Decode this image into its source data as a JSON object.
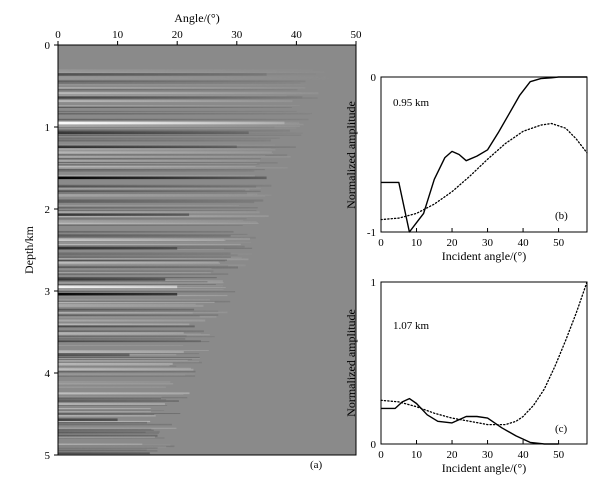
{
  "chart_data": [
    {
      "type": "heatmap",
      "panel_label": "(a)",
      "title": "",
      "xlabel": "Angle/(°)",
      "ylabel": "Depth/km",
      "xlim": [
        0,
        50
      ],
      "ylim": [
        0,
        5
      ],
      "x_ticks": [
        "0",
        "10",
        "20",
        "30",
        "40",
        "50"
      ],
      "y_ticks": [
        "0",
        "1",
        "2",
        "3",
        "4",
        "5"
      ],
      "colormap": "gray seismic amplitude",
      "strong_reflectors": [
        {
          "depth_km": 0.36,
          "strength": -0.35,
          "fade_angle_deg": 35
        },
        {
          "depth_km": 0.95,
          "strength": 0.95,
          "fade_angle_deg": 38
        },
        {
          "depth_km": 1.07,
          "strength": -0.55,
          "fade_angle_deg": 32
        },
        {
          "depth_km": 1.24,
          "strength": -0.45,
          "fade_angle_deg": 30
        },
        {
          "depth_km": 1.62,
          "strength": -0.98,
          "fade_angle_deg": 35
        },
        {
          "depth_km": 2.07,
          "strength": -0.6,
          "fade_angle_deg": 22
        },
        {
          "depth_km": 2.48,
          "strength": -0.55,
          "fade_angle_deg": 20
        },
        {
          "depth_km": 2.86,
          "strength": -0.6,
          "fade_angle_deg": 18
        },
        {
          "depth_km": 2.95,
          "strength": 0.85,
          "fade_angle_deg": 20
        },
        {
          "depth_km": 3.04,
          "strength": -0.95,
          "fade_angle_deg": 20
        },
        {
          "depth_km": 3.78,
          "strength": -0.45,
          "fade_angle_deg": 12
        },
        {
          "depth_km": 4.57,
          "strength": -0.5,
          "fade_angle_deg": 10
        }
      ]
    },
    {
      "type": "line",
      "panel_label": "(b)",
      "annotation": "0.95 km",
      "xlabel": "Incident angle/(°)",
      "ylabel": "Normalized amplitude",
      "xlim": [
        0,
        58
      ],
      "ylim": [
        -1,
        0
      ],
      "x_ticks": [
        "0",
        "10",
        "20",
        "30",
        "40",
        "50"
      ],
      "y_ticks": [
        "0",
        "-1"
      ],
      "series": [
        {
          "name": "solid",
          "style": "solid",
          "x": [
            0,
            3,
            5,
            8,
            10,
            12,
            15,
            18,
            20,
            22,
            24,
            27,
            30,
            33,
            36,
            39,
            42,
            45,
            48,
            50,
            58
          ],
          "y": [
            -0.68,
            -0.68,
            -0.68,
            -1.0,
            -0.94,
            -0.88,
            -0.66,
            -0.52,
            -0.48,
            -0.5,
            -0.54,
            -0.51,
            -0.47,
            -0.36,
            -0.24,
            -0.12,
            -0.03,
            -0.01,
            -0.005,
            0,
            0
          ]
        },
        {
          "name": "dotted",
          "style": "dotted",
          "x": [
            0,
            5,
            10,
            15,
            20,
            25,
            30,
            35,
            40,
            45,
            48,
            52,
            55,
            58
          ],
          "y": [
            -0.92,
            -0.91,
            -0.88,
            -0.82,
            -0.74,
            -0.64,
            -0.53,
            -0.43,
            -0.35,
            -0.31,
            -0.3,
            -0.33,
            -0.4,
            -0.49
          ]
        }
      ]
    },
    {
      "type": "line",
      "panel_label": "(c)",
      "annotation": "1.07 km",
      "xlabel": "Incident angle/(°)",
      "ylabel": "Normalized amplitude",
      "xlim": [
        0,
        58
      ],
      "ylim": [
        0,
        1
      ],
      "x_ticks": [
        "0",
        "10",
        "20",
        "30",
        "40",
        "50"
      ],
      "y_ticks": [
        "0",
        "1"
      ],
      "series": [
        {
          "name": "solid",
          "style": "solid",
          "x": [
            0,
            4,
            6,
            8,
            10,
            13,
            16,
            20,
            24,
            27,
            30,
            34,
            38,
            42,
            46,
            50
          ],
          "y": [
            0.22,
            0.22,
            0.26,
            0.28,
            0.25,
            0.18,
            0.14,
            0.13,
            0.17,
            0.17,
            0.16,
            0.1,
            0.05,
            0.01,
            0,
            0
          ]
        },
        {
          "name": "dotted",
          "style": "dotted",
          "x": [
            0,
            5,
            10,
            15,
            20,
            25,
            30,
            35,
            38,
            40,
            43,
            46,
            49,
            52,
            55,
            58
          ],
          "y": [
            0.27,
            0.26,
            0.23,
            0.19,
            0.16,
            0.14,
            0.12,
            0.12,
            0.14,
            0.17,
            0.24,
            0.34,
            0.48,
            0.64,
            0.81,
            1.0
          ]
        }
      ]
    }
  ]
}
